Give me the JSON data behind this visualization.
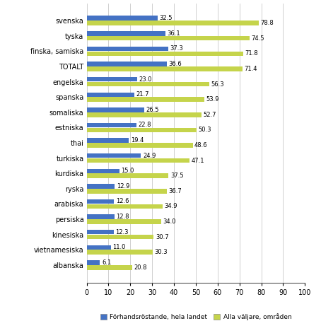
{
  "categories": [
    "svenska",
    "tyska",
    "finska, samiska",
    "TOTALT",
    "engelska",
    "spanska",
    "somaliska",
    "estniska",
    "thai",
    "turkiska",
    "kurdiska",
    "ryska",
    "arabiska",
    "persiska",
    "kinesiska",
    "vietnamesiska",
    "albanska"
  ],
  "forhand": [
    32.5,
    36.1,
    37.3,
    36.6,
    23.0,
    21.7,
    26.5,
    22.8,
    19.4,
    24.9,
    15.0,
    12.9,
    12.6,
    12.8,
    12.3,
    11.0,
    6.1
  ],
  "alla": [
    78.8,
    74.5,
    71.8,
    71.4,
    56.3,
    53.9,
    52.7,
    50.3,
    48.6,
    47.1,
    37.5,
    36.7,
    34.9,
    34.0,
    30.7,
    30.3,
    20.8
  ],
  "color_forhand": "#4472c4",
  "color_alla": "#c5d44b",
  "xlim": [
    0,
    100
  ],
  "xticks": [
    0,
    10,
    20,
    30,
    40,
    50,
    60,
    70,
    80,
    90,
    100
  ],
  "legend_forhand": "Förhandsрöstande, hela landet",
  "legend_alla": "Alla väljare, områden",
  "background_color": "#ffffff",
  "grid_color": "#c8c8c8"
}
